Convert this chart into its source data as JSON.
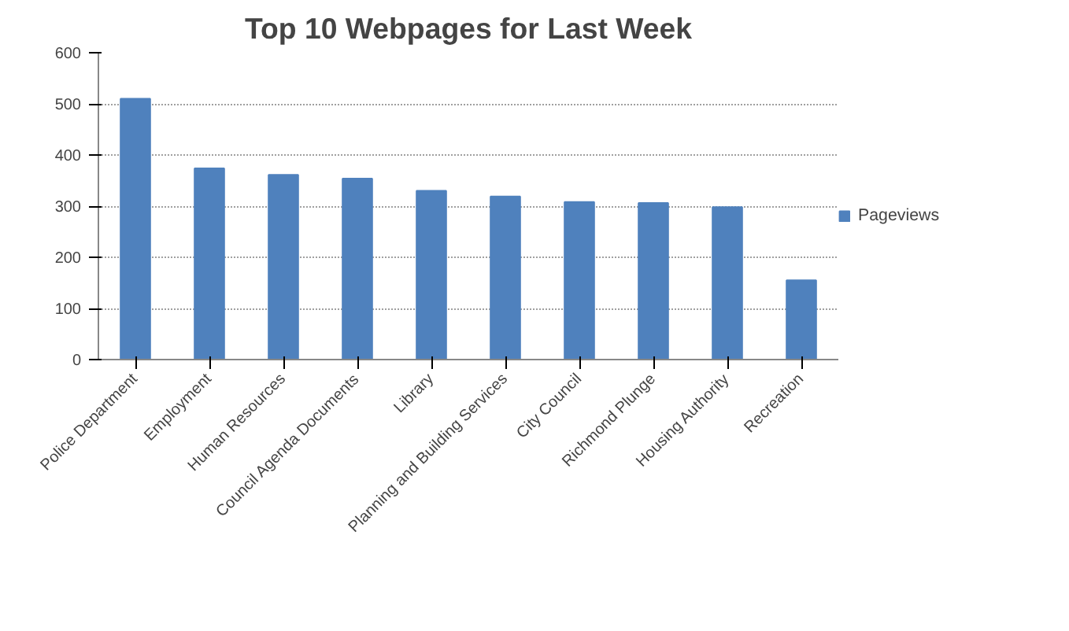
{
  "chart_data": {
    "type": "bar",
    "title": "Top 10 Webpages for Last Week",
    "categories": [
      "Police Department",
      "Employment",
      "Human Resources",
      "Council Agenda Documents",
      "Library",
      "Planning and Building Services",
      "City Council",
      "Richmond Plunge",
      "Housing Authority",
      "Recreation"
    ],
    "series": [
      {
        "name": "Pageviews",
        "color": "#4f81bd",
        "values": [
          510,
          374,
          361,
          354,
          330,
          319,
          308,
          306,
          298,
          155
        ]
      }
    ],
    "ylim": [
      0,
      600
    ],
    "yticks": [
      0,
      100,
      200,
      300,
      400,
      500,
      600
    ],
    "grid": "y",
    "legend": "right"
  }
}
